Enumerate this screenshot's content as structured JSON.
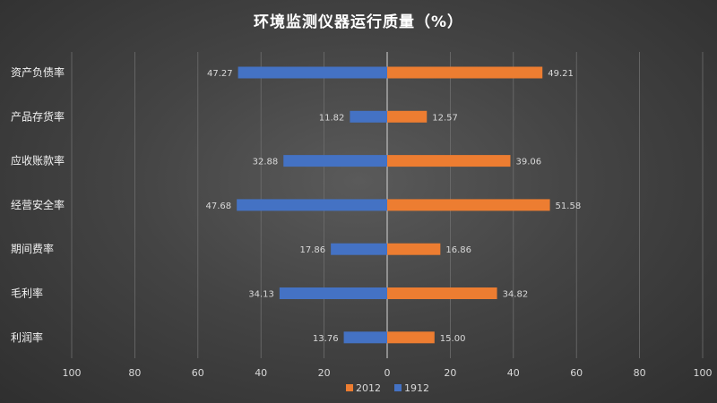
{
  "chart_data": {
    "type": "bar",
    "orientation": "horizontal-butterfly",
    "title": "环境监测仪器运行质量（%）",
    "categories": [
      "资产负债率",
      "产品存货率",
      "应收账款率",
      "经营安全率",
      "期间费率",
      "毛利率",
      "利润率"
    ],
    "series": [
      {
        "name": "1912",
        "direction": "left",
        "color": "#4472c4",
        "values": [
          47.27,
          11.82,
          32.88,
          47.68,
          17.86,
          34.13,
          13.76
        ],
        "labels": [
          "47.27",
          "11.82",
          "32.88",
          "47.68",
          "17.86",
          "34.13",
          "13.76"
        ]
      },
      {
        "name": "2012",
        "direction": "right",
        "color": "#ed7d31",
        "values": [
          49.21,
          12.57,
          39.06,
          51.58,
          16.86,
          34.82,
          15.0
        ],
        "labels": [
          "49.21",
          "12.57",
          "39.06",
          "51.58",
          "16.86",
          "34.82",
          "15.00"
        ]
      }
    ],
    "xlim": [
      -100,
      100
    ],
    "x_ticks": [
      -100,
      -80,
      -60,
      -40,
      -20,
      0,
      20,
      40,
      60,
      80,
      100
    ],
    "x_tick_labels": [
      "100",
      "80",
      "60",
      "40",
      "20",
      "0",
      "20",
      "40",
      "60",
      "80",
      "100"
    ],
    "grid": true,
    "legend": {
      "position": "bottom",
      "entries": [
        "2012",
        "1912"
      ]
    }
  }
}
